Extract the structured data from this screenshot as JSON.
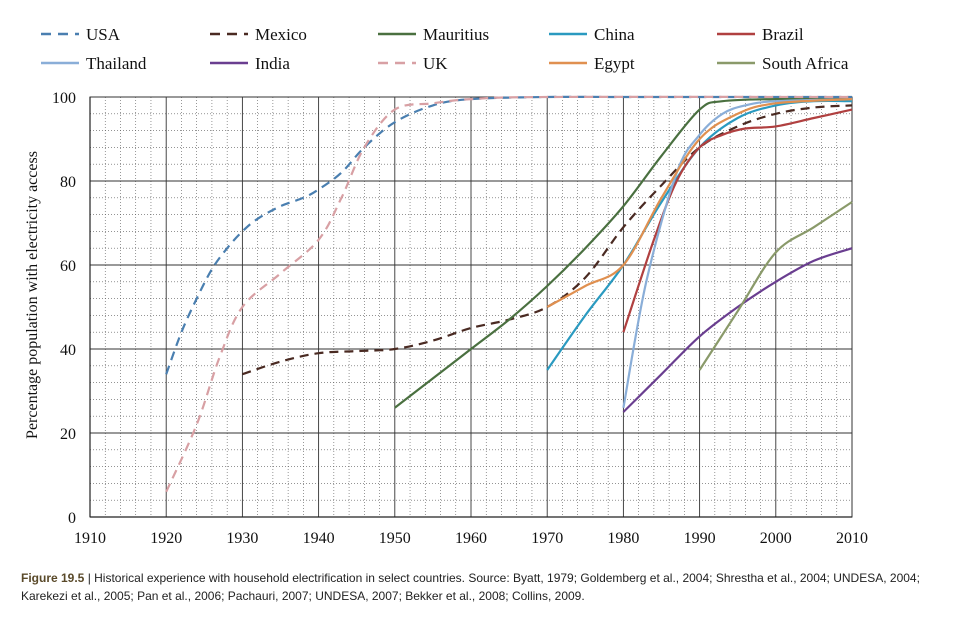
{
  "caption": {
    "label": "Figure 19.5",
    "text": " | Historical experience with household electrification in select countries. Source: Byatt, 1979; Goldemberg et al., 2004; Shrestha et al., 2004; UNDESA, 2004; Karekezi et al., 2005; Pan et al., 2006; Pachauri, 2007; UNDESA, 2007; Bekker et al., 2008; Collins, 2009."
  },
  "chart_data": {
    "type": "line",
    "title": "",
    "xlabel": "",
    "ylabel": "Percentage population with electricity access",
    "xlim": [
      1910,
      2010
    ],
    "ylim": [
      0,
      100
    ],
    "x_ticks": [
      1910,
      1920,
      1930,
      1940,
      1950,
      1960,
      1970,
      1980,
      1990,
      2000,
      2010
    ],
    "y_ticks": [
      0,
      20,
      40,
      60,
      80,
      100
    ],
    "grid": true,
    "legend_position": "top",
    "series": [
      {
        "name": "USA",
        "color": "#4a7fb0",
        "dash": true,
        "points": [
          [
            1920,
            34
          ],
          [
            1922,
            44
          ],
          [
            1924,
            52
          ],
          [
            1926,
            59
          ],
          [
            1928,
            64
          ],
          [
            1930,
            68
          ],
          [
            1932,
            71
          ],
          [
            1935,
            74
          ],
          [
            1938,
            76
          ],
          [
            1940,
            78
          ],
          [
            1943,
            82
          ],
          [
            1946,
            88
          ],
          [
            1950,
            94
          ],
          [
            1955,
            98
          ],
          [
            1960,
            99.5
          ],
          [
            1970,
            100
          ],
          [
            1980,
            100
          ],
          [
            1990,
            100
          ],
          [
            2000,
            100
          ],
          [
            2010,
            100
          ]
        ]
      },
      {
        "name": "Mexico",
        "color": "#4a2a22",
        "dash": true,
        "points": [
          [
            1930,
            34
          ],
          [
            1935,
            37
          ],
          [
            1940,
            39
          ],
          [
            1945,
            39.5
          ],
          [
            1950,
            40
          ],
          [
            1955,
            42
          ],
          [
            1960,
            45
          ],
          [
            1965,
            47
          ],
          [
            1970,
            50
          ],
          [
            1975,
            57
          ],
          [
            1980,
            69
          ],
          [
            1985,
            79
          ],
          [
            1990,
            88
          ],
          [
            1995,
            93
          ],
          [
            2000,
            96
          ],
          [
            2005,
            97.5
          ],
          [
            2010,
            98
          ]
        ]
      },
      {
        "name": "Mauritius",
        "color": "#4a7040",
        "dash": false,
        "points": [
          [
            1950,
            26
          ],
          [
            1955,
            33
          ],
          [
            1960,
            40
          ],
          [
            1965,
            47
          ],
          [
            1970,
            55
          ],
          [
            1975,
            64
          ],
          [
            1980,
            74
          ],
          [
            1985,
            86
          ],
          [
            1990,
            97
          ],
          [
            1993,
            99
          ],
          [
            2000,
            99.5
          ],
          [
            2010,
            99.5
          ]
        ]
      },
      {
        "name": "China",
        "color": "#2a9ac0",
        "dash": false,
        "points": [
          [
            1970,
            35
          ],
          [
            1975,
            48
          ],
          [
            1980,
            60
          ],
          [
            1985,
            75
          ],
          [
            1990,
            88
          ],
          [
            1995,
            95
          ],
          [
            2000,
            98
          ],
          [
            2005,
            99
          ],
          [
            2010,
            99
          ]
        ]
      },
      {
        "name": "Brazil",
        "color": "#b04040",
        "dash": false,
        "points": [
          [
            1980,
            44
          ],
          [
            1984,
            66
          ],
          [
            1987,
            80
          ],
          [
            1990,
            88
          ],
          [
            1993,
            91
          ],
          [
            1996,
            92.5
          ],
          [
            2000,
            93
          ],
          [
            2005,
            95
          ],
          [
            2010,
            97
          ]
        ]
      },
      {
        "name": "Thailand",
        "color": "#8aaed8",
        "dash": false,
        "points": [
          [
            1980,
            26
          ],
          [
            1983,
            56
          ],
          [
            1987,
            82
          ],
          [
            1990,
            91
          ],
          [
            1993,
            96
          ],
          [
            1996,
            98
          ],
          [
            2000,
            99
          ],
          [
            2010,
            99.5
          ]
        ]
      },
      {
        "name": "India",
        "color": "#6a3e90",
        "dash": false,
        "points": [
          [
            1980,
            25
          ],
          [
            1985,
            34
          ],
          [
            1990,
            43
          ],
          [
            1995,
            50
          ],
          [
            2000,
            56
          ],
          [
            2005,
            61
          ],
          [
            2010,
            64
          ]
        ]
      },
      {
        "name": "UK",
        "color": "#d8a0a4",
        "dash": true,
        "points": [
          [
            1920,
            6
          ],
          [
            1924,
            22
          ],
          [
            1927,
            38
          ],
          [
            1930,
            50
          ],
          [
            1935,
            58
          ],
          [
            1940,
            66
          ],
          [
            1943,
            76
          ],
          [
            1946,
            88
          ],
          [
            1950,
            97
          ],
          [
            1955,
            98.5
          ],
          [
            1960,
            99.5
          ],
          [
            1970,
            100
          ],
          [
            2010,
            100
          ]
        ]
      },
      {
        "name": "Egypt",
        "color": "#e09050",
        "dash": false,
        "points": [
          [
            1970,
            50
          ],
          [
            1975,
            55
          ],
          [
            1980,
            60
          ],
          [
            1985,
            76
          ],
          [
            1990,
            90
          ],
          [
            1995,
            96
          ],
          [
            2000,
            98.5
          ],
          [
            2010,
            99.5
          ]
        ]
      },
      {
        "name": "South Africa",
        "color": "#8a9a6a",
        "dash": false,
        "points": [
          [
            1990,
            35
          ],
          [
            1995,
            49
          ],
          [
            2000,
            63
          ],
          [
            2005,
            69
          ],
          [
            2010,
            75
          ]
        ]
      }
    ]
  }
}
